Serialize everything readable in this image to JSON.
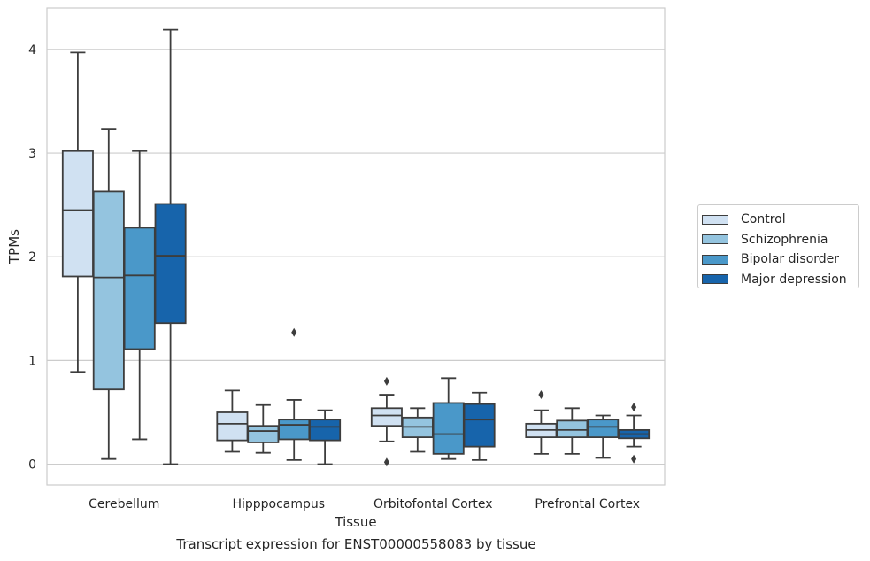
{
  "chart_data": {
    "type": "box",
    "title": "Transcript expression for ENST00000558083 by tissue",
    "xlabel": "Tissue",
    "ylabel": "TPMs",
    "ylim": [
      -0.2,
      4.4
    ],
    "yticks": [
      0,
      1,
      2,
      3,
      4
    ],
    "grid": "horizontal",
    "legend_position": "right",
    "categories": [
      "Cerebellum",
      "Hipppocampus",
      "Orbitofontal Cortex",
      "Prefrontal Cortex"
    ],
    "series": [
      {
        "name": "Control",
        "color": "#d0e1f2",
        "boxes": [
          {
            "whislo": 0.89,
            "q1": 1.81,
            "med": 2.45,
            "q3": 3.02,
            "whishi": 3.97,
            "fliers": []
          },
          {
            "whislo": 0.12,
            "q1": 0.23,
            "med": 0.39,
            "q3": 0.5,
            "whishi": 0.71,
            "fliers": []
          },
          {
            "whislo": 0.22,
            "q1": 0.37,
            "med": 0.47,
            "q3": 0.54,
            "whishi": 0.67,
            "fliers": [
              0.8,
              0.02
            ]
          },
          {
            "whislo": 0.1,
            "q1": 0.26,
            "med": 0.33,
            "q3": 0.39,
            "whishi": 0.52,
            "fliers": [
              0.67
            ]
          }
        ]
      },
      {
        "name": "Schizophrenia",
        "color": "#94c4df",
        "boxes": [
          {
            "whislo": 0.05,
            "q1": 0.72,
            "med": 1.8,
            "q3": 2.63,
            "whishi": 3.23,
            "fliers": []
          },
          {
            "whislo": 0.11,
            "q1": 0.21,
            "med": 0.32,
            "q3": 0.37,
            "whishi": 0.57,
            "fliers": []
          },
          {
            "whislo": 0.12,
            "q1": 0.26,
            "med": 0.36,
            "q3": 0.45,
            "whishi": 0.54,
            "fliers": []
          },
          {
            "whislo": 0.1,
            "q1": 0.26,
            "med": 0.33,
            "q3": 0.42,
            "whishi": 0.54,
            "fliers": []
          }
        ]
      },
      {
        "name": "Bipolar disorder",
        "color": "#4a98c9",
        "boxes": [
          {
            "whislo": 0.24,
            "q1": 1.11,
            "med": 1.82,
            "q3": 2.28,
            "whishi": 3.02,
            "fliers": []
          },
          {
            "whislo": 0.04,
            "q1": 0.24,
            "med": 0.38,
            "q3": 0.43,
            "whishi": 0.62,
            "fliers": [
              1.27
            ]
          },
          {
            "whislo": 0.05,
            "q1": 0.1,
            "med": 0.29,
            "q3": 0.59,
            "whishi": 0.83,
            "fliers": []
          },
          {
            "whislo": 0.06,
            "q1": 0.26,
            "med": 0.36,
            "q3": 0.43,
            "whishi": 0.47,
            "fliers": []
          }
        ]
      },
      {
        "name": "Major depression",
        "color": "#1764ab",
        "boxes": [
          {
            "whislo": 0.0,
            "q1": 1.36,
            "med": 2.01,
            "q3": 2.51,
            "whishi": 4.19,
            "fliers": []
          },
          {
            "whislo": 0.0,
            "q1": 0.23,
            "med": 0.36,
            "q3": 0.43,
            "whishi": 0.52,
            "fliers": []
          },
          {
            "whislo": 0.04,
            "q1": 0.17,
            "med": 0.43,
            "q3": 0.58,
            "whishi": 0.69,
            "fliers": []
          },
          {
            "whislo": 0.17,
            "q1": 0.25,
            "med": 0.29,
            "q3": 0.33,
            "whishi": 0.47,
            "fliers": [
              0.55,
              0.05
            ]
          }
        ]
      }
    ]
  }
}
